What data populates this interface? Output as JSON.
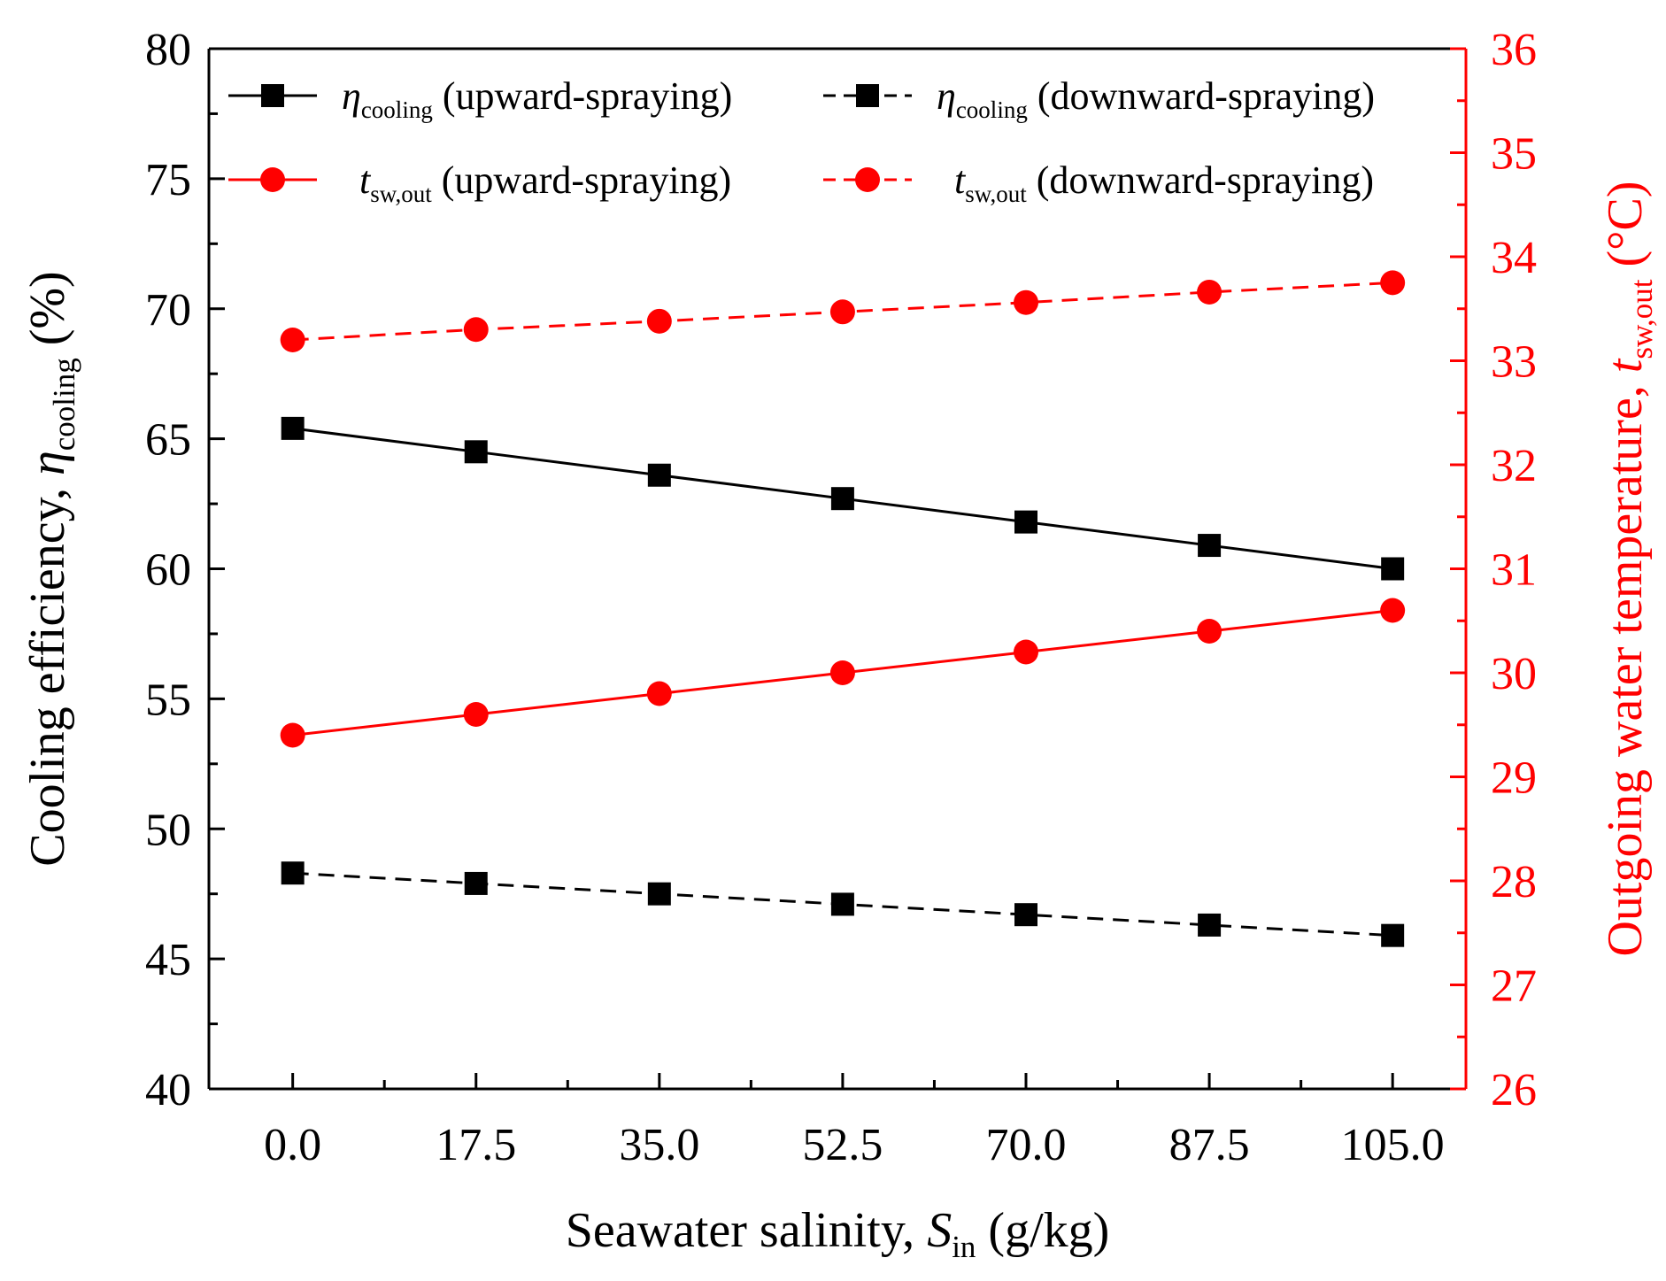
{
  "chart_data": {
    "type": "line",
    "x": [
      0.0,
      17.5,
      35.0,
      52.5,
      70.0,
      87.5,
      105.0
    ],
    "x_tick_labels": [
      "0.0",
      "17.5",
      "35.0",
      "52.5",
      "70.0",
      "87.5",
      "105.0"
    ],
    "xlim": [
      -8,
      112
    ],
    "xlabel": {
      "main": "Seawater salinity,",
      "var": "S",
      "sub": "in",
      "unit": "(g/kg)"
    },
    "y_left": {
      "label": {
        "main": "Cooling efficiency,",
        "var": "η",
        "sub": "cooling",
        "unit": "(%)"
      },
      "lim": [
        40,
        80
      ],
      "ticks": [
        "40",
        "45",
        "50",
        "55",
        "60",
        "65",
        "70",
        "75",
        "80"
      ],
      "color": "#000000"
    },
    "y_right": {
      "label": {
        "main": "Outgoing water temperature,",
        "var": "t",
        "sub": "sw,out",
        "unit": "(°C)"
      },
      "lim": [
        26,
        36
      ],
      "ticks": [
        "26",
        "27",
        "28",
        "29",
        "30",
        "31",
        "32",
        "33",
        "34",
        "35",
        "36"
      ],
      "color": "#ff0000"
    },
    "series": [
      {
        "name": {
          "var": "η",
          "sub": "cooling",
          "desc": "(upward-spraying)"
        },
        "axis": "left",
        "color": "#000000",
        "marker": "square",
        "dash": "solid",
        "values": [
          65.4,
          64.5,
          63.6,
          62.7,
          61.8,
          60.9,
          60.0
        ]
      },
      {
        "name": {
          "var": "η",
          "sub": "cooling",
          "desc": "(downward-spraying)"
        },
        "axis": "left",
        "color": "#000000",
        "marker": "square",
        "dash": "dashed",
        "values": [
          48.3,
          47.9,
          47.5,
          47.1,
          46.7,
          46.3,
          45.9
        ]
      },
      {
        "name": {
          "var": "t",
          "sub": "sw,out",
          "desc": "(upward-spraying)"
        },
        "axis": "right",
        "color": "#ff0000",
        "marker": "circle",
        "dash": "solid",
        "values": [
          29.4,
          29.6,
          29.8,
          30.0,
          30.2,
          30.4,
          30.6
        ]
      },
      {
        "name": {
          "var": "t",
          "sub": "sw,out",
          "desc": "(downward-spraying)"
        },
        "axis": "right",
        "color": "#ff0000",
        "marker": "circle",
        "dash": "dashed",
        "values": [
          33.2,
          33.3,
          33.38,
          33.47,
          33.56,
          33.66,
          33.75
        ]
      }
    ],
    "legend_position": "top"
  }
}
